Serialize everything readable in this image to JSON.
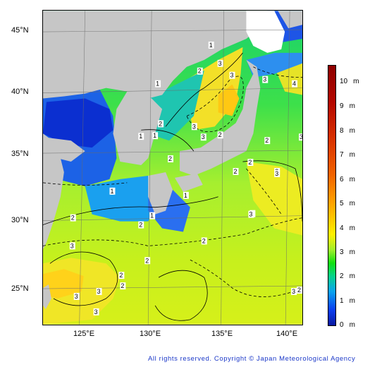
{
  "map": {
    "lat_labels": [
      "45°N",
      "40°N",
      "35°N",
      "30°N",
      "25°N"
    ],
    "lon_labels": [
      "125°E",
      "130°E",
      "135°E",
      "140°E"
    ],
    "contour_labels": [
      "1",
      "1",
      "2",
      "2",
      "2",
      "3",
      "3",
      "3",
      "3",
      "2",
      "1",
      "2",
      "3",
      "3",
      "4",
      "3",
      "2",
      "2",
      "3",
      "1",
      "1",
      "2",
      "1",
      "1",
      "2",
      "2",
      "3",
      "3",
      "3",
      "2",
      "3",
      "2",
      "2",
      "3",
      "3",
      "3",
      "2",
      "2",
      "1",
      "2",
      "3",
      "4",
      "3",
      "3",
      "2",
      "2"
    ]
  },
  "legend": {
    "unit": "m",
    "levels": [
      "10",
      "9",
      "8",
      "7",
      "6",
      "5",
      "4",
      "3",
      "2",
      "1",
      "0"
    ],
    "colors": {
      "low": "#0a1aa0",
      "mid": "#fff100",
      "high": "#8e0000"
    }
  },
  "footer": {
    "copyright": "All rights reserved. Copyright © Japan Meteorological Agency"
  }
}
